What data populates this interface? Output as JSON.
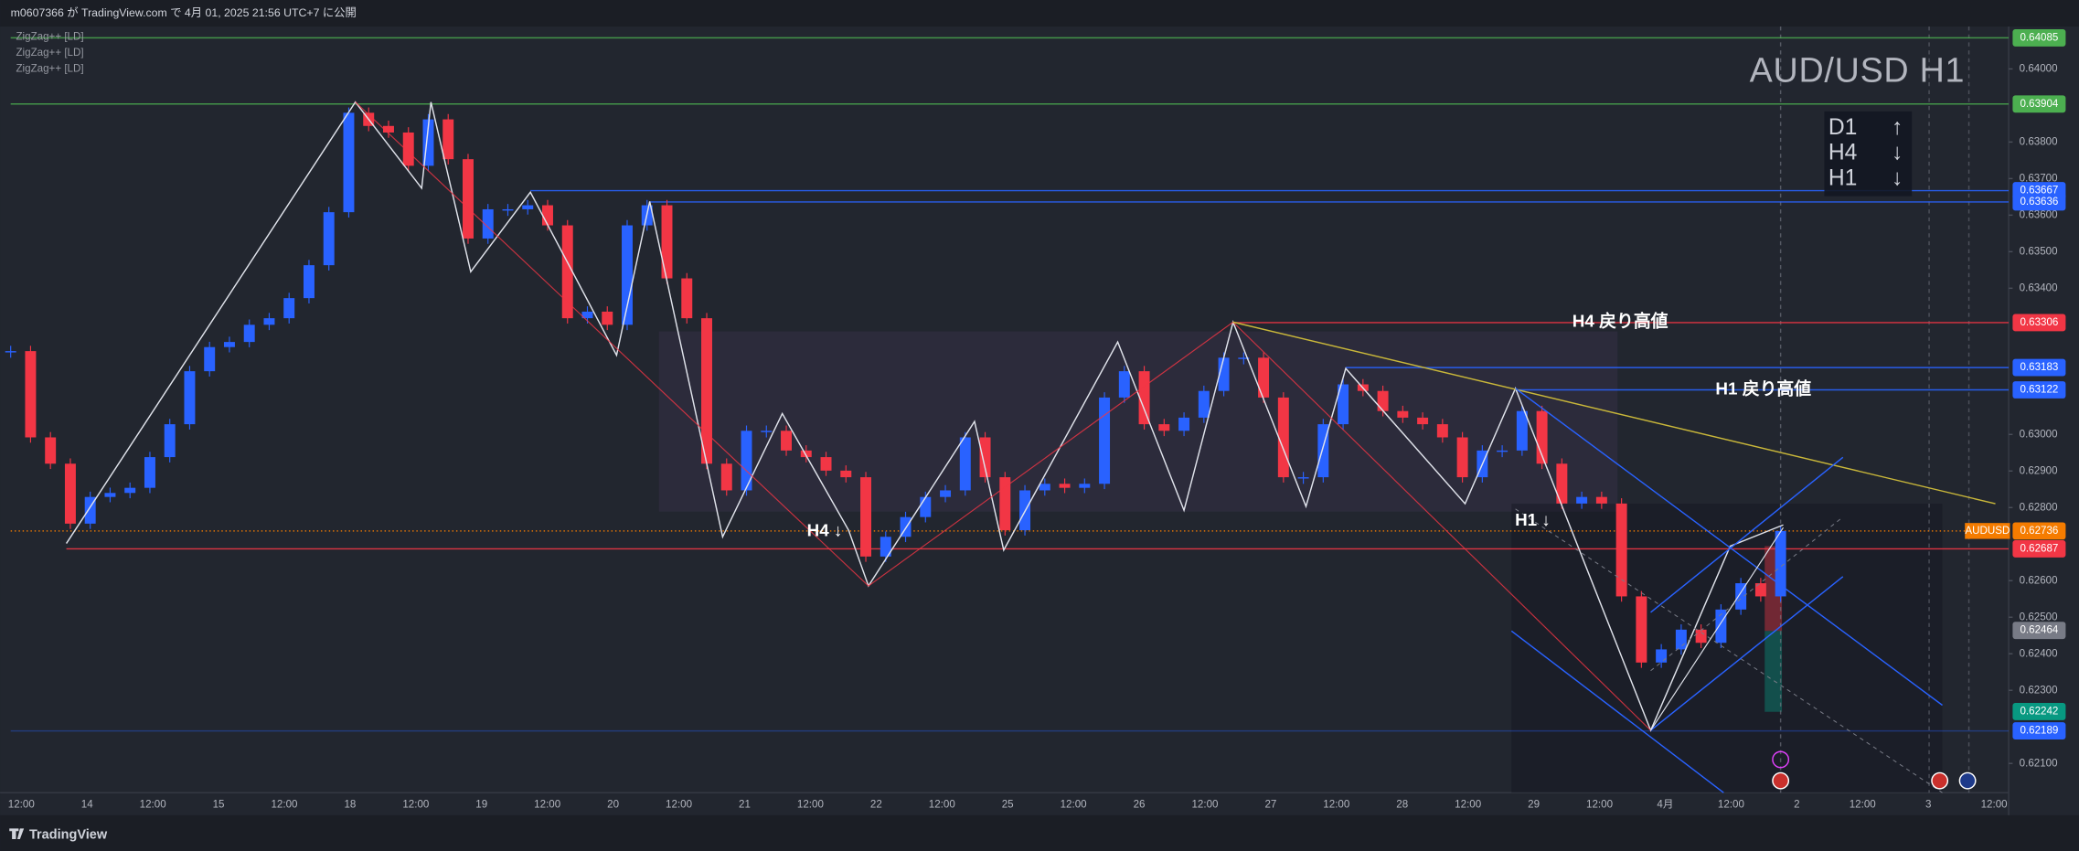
{
  "header": {
    "publish_text": "m0607366 が TradingView.com で 4月 01, 2025 21:56 UTC+7 に公開"
  },
  "indicators": [
    "ZigZag++ [LD]",
    "ZigZag++ [LD]",
    "ZigZag++ [LD]"
  ],
  "chart_data": {
    "type": "candlestick",
    "title": "AUD/USD H1",
    "x_axis_labels": [
      "12:00",
      "14",
      "12:00",
      "15",
      "12:00",
      "18",
      "12:00",
      "19",
      "12:00",
      "20",
      "12:00",
      "21",
      "12:00",
      "22",
      "12:00",
      "25",
      "12:00",
      "26",
      "12:00",
      "27",
      "12:00",
      "28",
      "12:00",
      "29",
      "12:00",
      "4月",
      "12:00",
      "2",
      "12:00",
      "3",
      "12:00"
    ],
    "values": [
      0.63228,
      0.62992,
      0.6292,
      0.62756,
      0.62829,
      0.6284,
      0.62854,
      0.62938,
      0.63028,
      0.63173,
      0.63239,
      0.63253,
      0.633,
      0.63318,
      0.63373,
      0.63463,
      0.63608,
      0.6388,
      0.63844,
      0.63826,
      0.63735,
      0.63862,
      0.63753,
      0.63536,
      0.63616,
      0.63616,
      0.63627,
      0.63572,
      0.63318,
      0.63336,
      0.633,
      0.63572,
      0.63627,
      0.63427,
      0.63318,
      0.6292,
      0.62847,
      0.6301,
      0.6301,
      0.62956,
      0.62938,
      0.62901,
      0.62883,
      0.62666,
      0.6272,
      0.62774,
      0.62829,
      0.62847,
      0.62992,
      0.62883,
      0.62738,
      0.62847,
      0.62865,
      0.62854,
      0.62865,
      0.63101,
      0.63173,
      0.63028,
      0.6301,
      0.63046,
      0.63119,
      0.6321,
      0.6321,
      0.63101,
      0.62883,
      0.62883,
      0.63028,
      0.63137,
      0.63119,
      0.63064,
      0.63046,
      0.63028,
      0.62992,
      0.62883,
      0.62956,
      0.62956,
      0.63064,
      0.6292,
      0.62811,
      0.62829,
      0.62811,
      0.62557,
      0.62376,
      0.62412,
      0.62466,
      0.6243,
      0.62521,
      0.62593,
      0.62557,
      0.62736
    ],
    "up_color": "#2962ff",
    "down_color": "#f23645",
    "ylim": [
      0.6202,
      0.64116
    ],
    "yticks": [
      {
        "value": 0.64,
        "label": "0.64000"
      },
      {
        "value": 0.638,
        "label": "0.63800"
      },
      {
        "value": 0.637,
        "label": "0.63700"
      },
      {
        "value": 0.636,
        "label": "0.63600"
      },
      {
        "value": 0.635,
        "label": "0.63500"
      },
      {
        "value": 0.634,
        "label": "0.63400"
      },
      {
        "value": 0.63,
        "label": "0.63000"
      },
      {
        "value": 0.629,
        "label": "0.62900"
      },
      {
        "value": 0.628,
        "label": "0.62800"
      },
      {
        "value": 0.626,
        "label": "0.62600"
      },
      {
        "value": 0.625,
        "label": "0.62500"
      },
      {
        "value": 0.624,
        "label": "0.62400"
      },
      {
        "value": 0.623,
        "label": "0.62300"
      },
      {
        "value": 0.621,
        "label": "0.62100"
      }
    ],
    "price_labels": [
      {
        "value": 0.64085,
        "color": "#4caf50"
      },
      {
        "value": 0.63904,
        "color": "#4caf50"
      },
      {
        "value": 0.63667,
        "color": "#2962ff"
      },
      {
        "value": 0.63636,
        "color": "#2962ff"
      },
      {
        "value": 0.63306,
        "color": "#f23645"
      },
      {
        "value": 0.63183,
        "color": "#2962ff"
      },
      {
        "value": 0.63122,
        "color": "#2962ff"
      },
      {
        "value": 0.62736,
        "color": "#f57c00"
      },
      {
        "value": 0.62687,
        "color": "#f23645"
      },
      {
        "value": 0.62464,
        "color": "#787b86"
      },
      {
        "value": 0.62242,
        "color": "#089981"
      },
      {
        "value": 0.62189,
        "color": "#2962ff"
      }
    ],
    "symbol_label": "AUDUSD",
    "annotations": {
      "h4_high": "H4 戻り高値",
      "h1_high": "H1 戻り高値",
      "h4_trend": "H4 ↓",
      "h1_trend": "H1 ↓"
    },
    "trend_table": [
      {
        "tf": "D1",
        "arrow": "↑"
      },
      {
        "tf": "H4",
        "arrow": "↓"
      },
      {
        "tf": "H1",
        "arrow": "↓"
      }
    ]
  },
  "footer": {
    "brand": "TradingView"
  }
}
